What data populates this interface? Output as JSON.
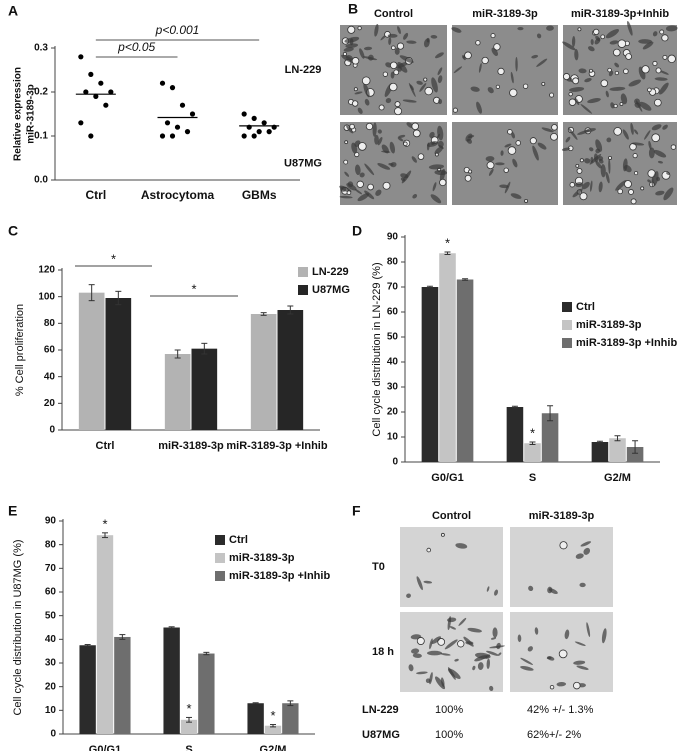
{
  "chart_data": [
    {
      "type": "scatter",
      "label": "A",
      "ylabel": [
        "Relative expression",
        "miR-3189-3p"
      ],
      "categories": [
        "Ctrl",
        "Astrocytoma",
        "GBMs"
      ],
      "groups": [
        [
          0.28,
          0.24,
          0.22,
          0.2,
          0.2,
          0.19,
          0.17,
          0.13,
          0.1
        ],
        [
          0.22,
          0.21,
          0.17,
          0.15,
          0.13,
          0.12,
          0.11,
          0.1,
          0.1
        ],
        [
          0.15,
          0.14,
          0.13,
          0.12,
          0.12,
          0.11,
          0.11,
          0.1,
          0.1
        ]
      ],
      "medians": [
        0.195,
        0.142,
        0.123
      ],
      "color": "#000000",
      "ylim": [
        0,
        0.3
      ],
      "yticks": [
        {
          "value": 0,
          "label": "0.0"
        },
        0.1,
        0.2,
        0.3
      ],
      "annotations": [
        "p<0.05",
        "p<0.001"
      ]
    },
    {
      "type": "bar",
      "label": "C",
      "ylabel": "% Cell proliferation",
      "categories": [
        "Ctrl",
        "miR-3189-3p",
        "miR-3189-3p +Inhib"
      ],
      "series": [
        {
          "name": "LN-229",
          "color": "#b3b3b3",
          "values": [
            103,
            57,
            87
          ],
          "errors": [
            6,
            3,
            1
          ]
        },
        {
          "name": "U87MG",
          "color": "#262626",
          "values": [
            99,
            61,
            90
          ],
          "errors": [
            5,
            4,
            3
          ]
        }
      ],
      "ylim": [
        0,
        120
      ],
      "yticks": [
        0,
        20,
        40,
        60,
        80,
        100,
        120
      ],
      "legend": "upper right",
      "annotations": [
        "*",
        "*"
      ]
    },
    {
      "type": "bar",
      "label": "D",
      "ylabel": "Cell cycle distribution in LN-229 (%)",
      "categories": [
        "G0/G1",
        "S",
        "G2/M"
      ],
      "series": [
        {
          "name": "Ctrl",
          "color": "#2b2b2b",
          "values": [
            70,
            22,
            8
          ],
          "errors": [
            0.3,
            0.3,
            0.3
          ]
        },
        {
          "name": "miR-3189-3p",
          "color": "#c4c4c4",
          "values": [
            83.5,
            7.5,
            9.5
          ],
          "errors": [
            0.5,
            0.5,
            1
          ]
        },
        {
          "name": "miR-3189-3p +Inhib",
          "color": "#6e6e6e",
          "values": [
            73,
            19.5,
            6
          ],
          "errors": [
            0.3,
            3,
            2.5
          ]
        }
      ],
      "ylim": [
        0,
        90
      ],
      "yticks": [
        0,
        10,
        20,
        30,
        40,
        50,
        60,
        70,
        80,
        90
      ],
      "legend": "right",
      "annotations": [
        "*",
        "*"
      ]
    },
    {
      "type": "bar",
      "label": "E",
      "ylabel": "Cell cycle distribution in U87MG (%)",
      "categories": [
        "G0/G1",
        "S",
        "G2/M"
      ],
      "series": [
        {
          "name": "Ctrl",
          "color": "#2b2b2b",
          "values": [
            37.5,
            45,
            13
          ],
          "errors": [
            0.3,
            0.3,
            0.2
          ]
        },
        {
          "name": "miR-3189-3p",
          "color": "#c4c4c4",
          "values": [
            84,
            6,
            3.5
          ],
          "errors": [
            1,
            1,
            0.5
          ]
        },
        {
          "name": "miR-3189-3p +Inhib",
          "color": "#6e6e6e",
          "values": [
            41,
            34,
            13
          ],
          "errors": [
            1,
            0.5,
            1
          ]
        }
      ],
      "ylim": [
        0,
        90
      ],
      "yticks": [
        0,
        10,
        20,
        30,
        40,
        50,
        60,
        70,
        80,
        90
      ],
      "legend": "upper right",
      "annotations": [
        "*",
        "*",
        "*"
      ]
    }
  ],
  "image_panels": [
    {
      "label": "B",
      "columns": [
        "Control",
        "miR-3189-3p",
        "miR-3189-3p+Inhib"
      ],
      "rows": [
        "LN-229",
        "U87MG"
      ]
    },
    {
      "label": "F",
      "columns": [
        "Control",
        "miR-3189-3p"
      ],
      "rows": [
        "T0",
        "18 h"
      ],
      "table": [
        [
          "LN-229",
          "100%",
          "42% +/- 1.3%"
        ],
        [
          "U87MG",
          "100%",
          "62%+/- 2%"
        ]
      ]
    }
  ]
}
